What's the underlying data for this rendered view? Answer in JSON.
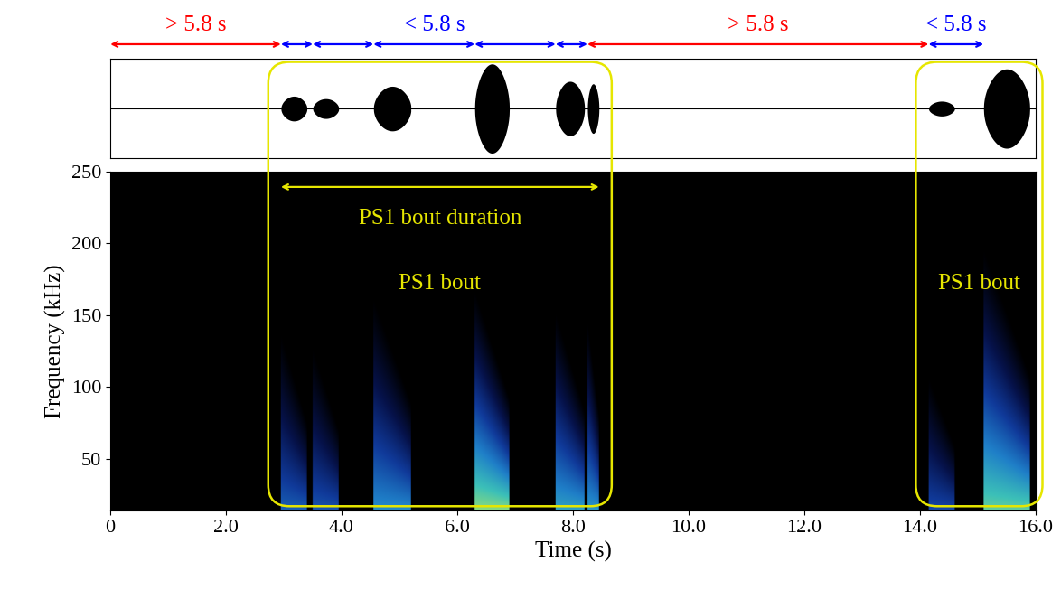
{
  "chart_data": {
    "type": "spectrogram",
    "xlabel": "Time (s)",
    "ylabel": "Frequency (kHz)",
    "xlim": [
      0,
      16
    ],
    "xticks": [
      0,
      {
        "value": 2,
        "label": "2.0"
      },
      {
        "value": 4,
        "label": "4.0"
      },
      {
        "value": 6,
        "label": "6.0"
      },
      {
        "value": 8,
        "label": "8.0"
      },
      {
        "value": 10,
        "label": "10.0"
      },
      {
        "value": 12,
        "label": "12.0"
      },
      {
        "value": 14,
        "label": "14.0"
      },
      {
        "value": 16,
        "label": "16.0"
      }
    ],
    "ylim": [
      14,
      250
    ],
    "yticks": [
      50,
      100,
      150,
      200,
      250
    ],
    "calls": [
      {
        "start": 2.95,
        "end": 3.4,
        "max_freq_khz": 140,
        "amplitude": 0.25
      },
      {
        "start": 3.5,
        "end": 3.95,
        "max_freq_khz": 130,
        "amplitude": 0.2
      },
      {
        "start": 4.55,
        "end": 5.2,
        "max_freq_khz": 165,
        "amplitude": 0.45
      },
      {
        "start": 6.3,
        "end": 6.9,
        "max_freq_khz": 170,
        "amplitude": 0.9
      },
      {
        "start": 7.7,
        "end": 8.2,
        "max_freq_khz": 155,
        "amplitude": 0.55
      },
      {
        "start": 8.25,
        "end": 8.45,
        "max_freq_khz": 150,
        "amplitude": 0.5
      },
      {
        "start": 14.15,
        "end": 14.6,
        "max_freq_khz": 110,
        "amplitude": 0.15
      },
      {
        "start": 15.1,
        "end": 15.9,
        "max_freq_khz": 200,
        "amplitude": 0.8
      }
    ],
    "intervals": [
      {
        "label": "> 5.8 s",
        "color": "#ff0000",
        "segments": [
          [
            0,
            2.95
          ]
        ]
      },
      {
        "label": "< 5.8 s",
        "color": "#0000ff",
        "segments": [
          [
            2.95,
            3.5
          ],
          [
            3.5,
            4.55
          ],
          [
            4.55,
            6.3
          ],
          [
            6.3,
            7.7
          ],
          [
            7.7,
            8.25
          ]
        ]
      },
      {
        "label": "> 5.8 s",
        "color": "#ff0000",
        "segments": [
          [
            8.25,
            14.15
          ]
        ]
      },
      {
        "label": "< 5.8 s",
        "color": "#0000ff",
        "segments": [
          [
            14.15,
            15.1
          ]
        ]
      }
    ],
    "bouts": [
      {
        "label": "PS1 bout",
        "start": 2.95,
        "end": 8.45,
        "duration_label": "PS1 bout duration",
        "color": "#e6e600"
      },
      {
        "label": "PS1 bout",
        "start": 14.15,
        "end": 15.9,
        "color": "#e6e600"
      }
    ]
  }
}
